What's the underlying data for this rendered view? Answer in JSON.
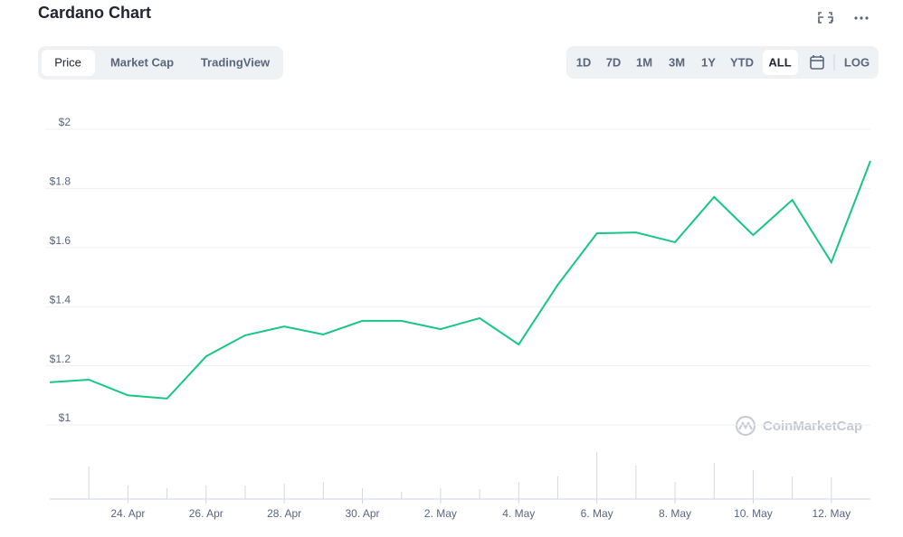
{
  "header": {
    "title": "Cardano Chart"
  },
  "tabs": [
    "Price",
    "Market Cap",
    "TradingView"
  ],
  "ranges": [
    "1D",
    "7D",
    "1M",
    "3M",
    "1Y",
    "YTD",
    "ALL",
    "LOG"
  ],
  "watermark": "CoinMarketCap",
  "chart_data": {
    "type": "line",
    "categories": [
      null,
      null,
      "24. Apr",
      null,
      "26. Apr",
      null,
      "28. Apr",
      null,
      "30. Apr",
      null,
      "2. May",
      null,
      "4. May",
      null,
      "6. May",
      null,
      "8. May",
      null,
      "10. May",
      null,
      "12. May",
      null
    ],
    "series": [
      {
        "color": "#16c784",
        "values": [
          1.144,
          1.153,
          1.1,
          1.089,
          1.232,
          1.303,
          1.333,
          1.306,
          1.352,
          1.352,
          1.324,
          1.361,
          1.272,
          1.474,
          1.648,
          1.651,
          1.618,
          1.771,
          1.642,
          1.761,
          1.55,
          1.893
        ]
      }
    ],
    "volume": {
      "color": "#d5d9de",
      "values": [
        null,
        36,
        15,
        12,
        15,
        15,
        17,
        19,
        12,
        8,
        12,
        11,
        19,
        25,
        52,
        37,
        19,
        40,
        32,
        25,
        24,
        null
      ]
    },
    "ylim": [
      1,
      2
    ],
    "yticks": [
      {
        "value": 1,
        "label": "$1"
      },
      {
        "value": 1.2,
        "label": "$1.2"
      },
      {
        "value": 1.4,
        "label": "$1.4"
      },
      {
        "value": 1.6,
        "label": "$1.6"
      },
      {
        "value": 1.8,
        "label": "$1.8"
      },
      {
        "value": 2,
        "label": "$2"
      }
    ],
    "grid": true
  }
}
